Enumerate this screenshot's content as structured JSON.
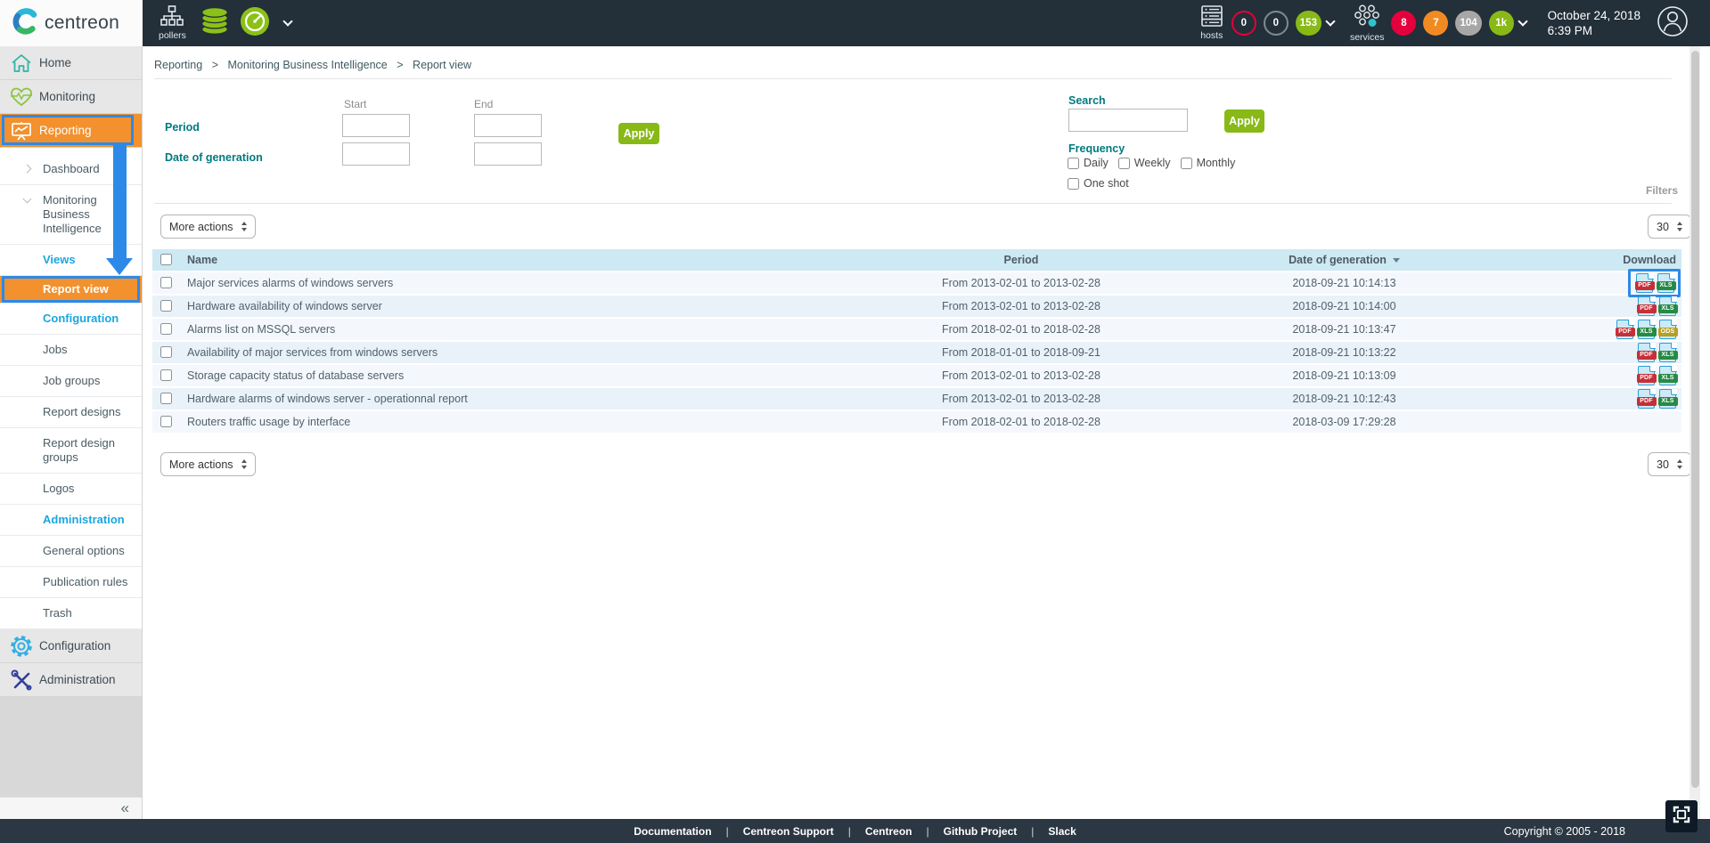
{
  "header": {
    "brand": "centreon",
    "pollers": {
      "label": "pollers"
    },
    "hosts": {
      "label": "hosts",
      "badges": [
        {
          "value": "0",
          "style": "ring-red"
        },
        {
          "value": "0",
          "style": "ring-gray"
        },
        {
          "value": "153",
          "style": "fill-green"
        }
      ]
    },
    "services": {
      "label": "services",
      "badges": [
        {
          "value": "8",
          "style": "fill-red"
        },
        {
          "value": "7",
          "style": "fill-orange"
        },
        {
          "value": "104",
          "style": "fill-gray"
        },
        {
          "value": "1k",
          "style": "fill-green"
        }
      ]
    },
    "date": "October 24, 2018",
    "time": "6:39 PM"
  },
  "sidebar": {
    "top": [
      {
        "label": "Home"
      },
      {
        "label": "Monitoring"
      },
      {
        "label": "Reporting"
      },
      {
        "label": "Configuration"
      },
      {
        "label": "Administration"
      }
    ],
    "submenu": [
      {
        "label": "Dashboard",
        "chevron": "right"
      },
      {
        "label": "Monitoring Business Intelligence",
        "chevron": "down"
      },
      {
        "label": "Views",
        "type": "link"
      },
      {
        "label": "Report view",
        "type": "active"
      },
      {
        "label": "Configuration",
        "type": "link"
      },
      {
        "label": "Jobs"
      },
      {
        "label": "Job groups"
      },
      {
        "label": "Report designs"
      },
      {
        "label": "Report design groups"
      },
      {
        "label": "Logos"
      },
      {
        "label": "Administration",
        "type": "link"
      },
      {
        "label": "General options"
      },
      {
        "label": "Publication rules"
      },
      {
        "label": "Trash"
      }
    ],
    "collapse": "«"
  },
  "breadcrumb": {
    "items": [
      "Reporting",
      "Monitoring Business Intelligence",
      "Report view"
    ],
    "separator": ">"
  },
  "filters": {
    "start_label": "Start",
    "end_label": "End",
    "period_label": "Period",
    "generation_label": "Date of generation",
    "apply_label": "Apply",
    "search_label": "Search",
    "frequency_label": "Frequency",
    "frequency_options": [
      "Daily",
      "Weekly",
      "Monthly",
      "One shot"
    ],
    "filters_tab": "Filters"
  },
  "toolbar": {
    "more_actions": "More actions",
    "page_size": "30"
  },
  "table": {
    "headers": {
      "name": "Name",
      "period": "Period",
      "generation": "Date of generation",
      "download": "Download"
    },
    "icon_labels": {
      "pdf": "PDF",
      "xls": "XLS",
      "ods": "ODS"
    },
    "rows": [
      {
        "name": "Major services alarms of windows servers",
        "period": "From 2013-02-01 to 2013-02-28",
        "generated": "2018-09-21 10:14:13",
        "formats": [
          "pdf",
          "xls"
        ],
        "highlighted": true
      },
      {
        "name": "Hardware availability of windows server",
        "period": "From 2013-02-01 to 2013-02-28",
        "generated": "2018-09-21 10:14:00",
        "formats": [
          "pdf",
          "xls"
        ]
      },
      {
        "name": "Alarms list on MSSQL servers",
        "period": "From 2018-02-01 to 2018-02-28",
        "generated": "2018-09-21 10:13:47",
        "formats": [
          "pdf",
          "xls",
          "ods"
        ]
      },
      {
        "name": "Availability of major services from windows servers",
        "period": "From 2018-01-01 to 2018-09-21",
        "generated": "2018-09-21 10:13:22",
        "formats": [
          "pdf",
          "xls"
        ]
      },
      {
        "name": "Storage capacity status of database servers",
        "period": "From 2013-02-01 to 2013-02-28",
        "generated": "2018-09-21 10:13:09",
        "formats": [
          "pdf",
          "xls"
        ]
      },
      {
        "name": "Hardware alarms of windows server - operationnal report",
        "period": "From 2013-02-01 to 2013-02-28",
        "generated": "2018-09-21 10:12:43",
        "formats": [
          "pdf",
          "xls"
        ]
      },
      {
        "name": "Routers traffic usage by interface",
        "period": "From 2018-02-01 to 2018-02-28",
        "generated": "2018-03-09 17:29:28",
        "formats": []
      }
    ]
  },
  "footer": {
    "links": [
      "Documentation",
      "Centreon Support",
      "Centreon",
      "Github Project",
      "Slack"
    ],
    "copyright": "Copyright © 2005 - 2018"
  },
  "colors": {
    "accent_orange": "#f2912d",
    "annotation_blue": "#2c89e8",
    "apply_green": "#88b917",
    "label_teal": "#007a80",
    "header_dark": "#232f39",
    "table_header_blue": "#cde9f3"
  }
}
